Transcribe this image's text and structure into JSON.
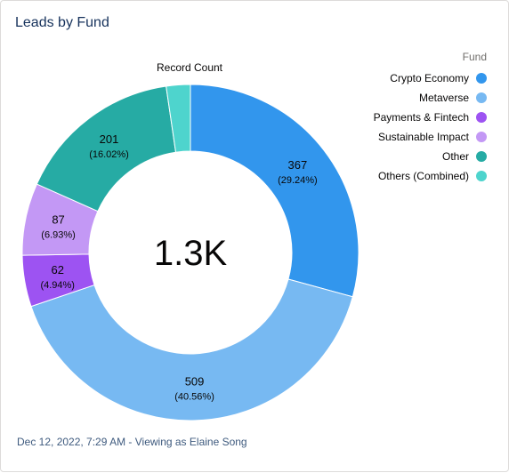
{
  "dashboard": {
    "title": "Leads by Fund",
    "footer": "Dec 12, 2022, 7:29 AM - Viewing as Elaine Song"
  },
  "chart_data": {
    "type": "donut",
    "measure_label": "Record Count",
    "center_total": "1.3K",
    "legend_title": "Fund",
    "legend_position": "top-right",
    "categories": [
      "Crypto Economy",
      "Metaverse",
      "Payments & Fintech",
      "Sustainable Impact",
      "Other",
      "Others (Combined)"
    ],
    "values": [
      367,
      509,
      62,
      87,
      201,
      29
    ],
    "percent_labels": [
      "(29.24%)",
      "(40.56%)",
      "(4.94%)",
      "(6.93%)",
      "(16.02%)",
      ""
    ],
    "value_labels": [
      "367",
      "509",
      "62",
      "87",
      "201",
      ""
    ],
    "colors": [
      "#3296ed",
      "#77b9f2",
      "#9d53f2",
      "#c398f5",
      "#26aba4",
      "#4ed4cd"
    ]
  }
}
